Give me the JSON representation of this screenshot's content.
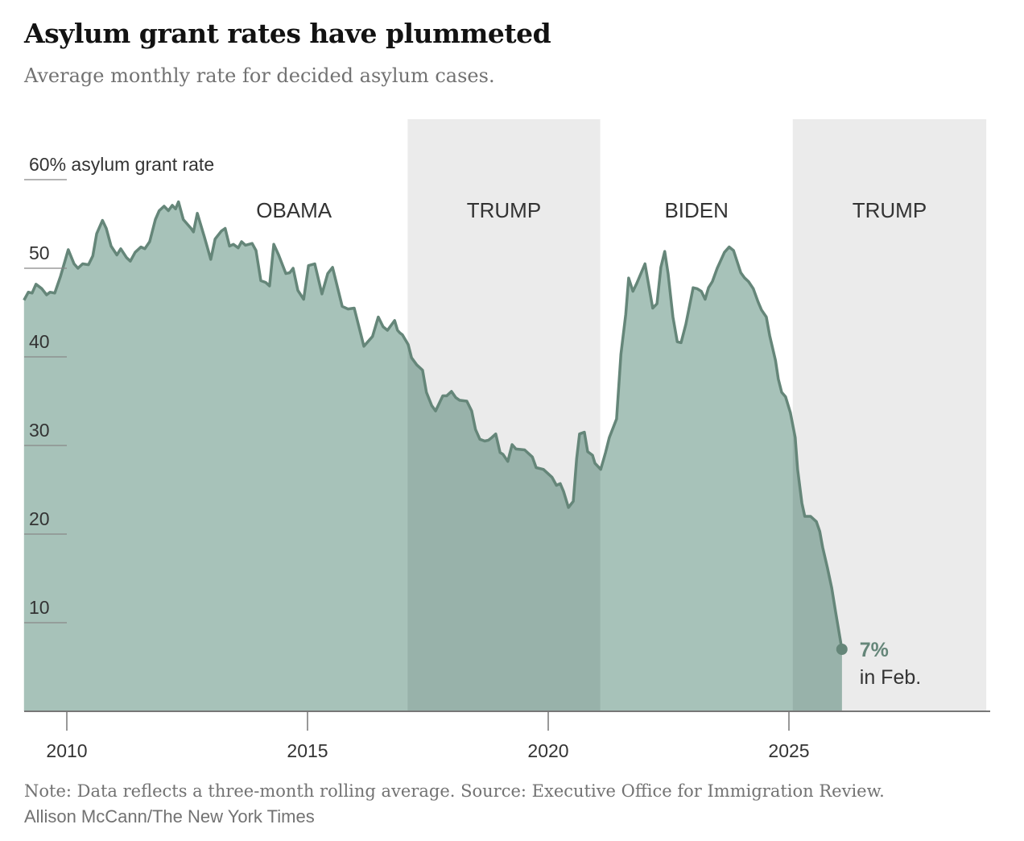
{
  "title": "Asylum grant rates have plummeted",
  "subtitle": "Average monthly rate for decided asylum cases.",
  "note": "Note: Data reflects a three-month rolling average.  Source: Executive Office for Immigration Review.",
  "credit": "Allison McCann/The New York Times",
  "colors": {
    "area": "#a7c2b9",
    "area_shaded": "#98b2aa",
    "line": "#658679",
    "term_shading": "#ebebeb"
  },
  "chart_data": {
    "type": "area",
    "title": "Asylum grant rates have plummeted",
    "subtitle": "Average monthly rate for decided asylum cases.",
    "ylabel": "60% asylum grant rate",
    "xlim": [
      2009.1,
      2029.1
    ],
    "ylim": [
      0,
      60
    ],
    "y_ticks": [
      {
        "value": 60,
        "label": "60% asylum grant rate"
      },
      {
        "value": 50,
        "label": "50"
      },
      {
        "value": 40,
        "label": "40"
      },
      {
        "value": 30,
        "label": "30"
      },
      {
        "value": 20,
        "label": "20"
      },
      {
        "value": 10,
        "label": "10"
      }
    ],
    "x_ticks": [
      {
        "value": 2010,
        "label": "2010"
      },
      {
        "value": 2015,
        "label": "2015"
      },
      {
        "value": 2020,
        "label": "2020"
      },
      {
        "value": 2025,
        "label": "2025"
      }
    ],
    "grid": false,
    "terms": [
      {
        "label": "OBAMA",
        "start": 2009.1,
        "end": 2017.08,
        "shaded": false
      },
      {
        "label": "TRUMP",
        "start": 2017.08,
        "end": 2021.08,
        "shaded": true
      },
      {
        "label": "BIDEN",
        "start": 2021.08,
        "end": 2025.08,
        "shaded": false
      },
      {
        "label": "TRUMP",
        "start": 2025.08,
        "end": 2029.1,
        "shaded": true
      }
    ],
    "annotation": {
      "value_label": "7%",
      "date_label": "in Feb.",
      "x": 2026.1,
      "y": 7
    },
    "points": [
      [
        2009.11,
        46.4
      ],
      [
        2009.2,
        47.3
      ],
      [
        2009.28,
        47.2
      ],
      [
        2009.36,
        48.2
      ],
      [
        2009.48,
        47.7
      ],
      [
        2009.58,
        47.0
      ],
      [
        2009.65,
        47.3
      ],
      [
        2009.75,
        47.2
      ],
      [
        2009.87,
        49.1
      ],
      [
        2010.03,
        52.1
      ],
      [
        2010.15,
        50.5
      ],
      [
        2010.23,
        50.0
      ],
      [
        2010.33,
        50.5
      ],
      [
        2010.45,
        50.4
      ],
      [
        2010.54,
        51.4
      ],
      [
        2010.62,
        53.9
      ],
      [
        2010.74,
        55.4
      ],
      [
        2010.82,
        54.5
      ],
      [
        2010.92,
        52.5
      ],
      [
        2011.04,
        51.5
      ],
      [
        2011.12,
        52.2
      ],
      [
        2011.24,
        51.2
      ],
      [
        2011.32,
        50.8
      ],
      [
        2011.42,
        51.8
      ],
      [
        2011.54,
        52.4
      ],
      [
        2011.62,
        52.2
      ],
      [
        2011.72,
        53.0
      ],
      [
        2011.84,
        55.5
      ],
      [
        2011.92,
        56.5
      ],
      [
        2012.02,
        57.0
      ],
      [
        2012.11,
        56.5
      ],
      [
        2012.19,
        57.1
      ],
      [
        2012.26,
        56.7
      ],
      [
        2012.32,
        57.5
      ],
      [
        2012.42,
        55.5
      ],
      [
        2012.58,
        54.5
      ],
      [
        2012.63,
        54.1
      ],
      [
        2012.71,
        56.2
      ],
      [
        2012.86,
        53.5
      ],
      [
        2012.99,
        51.0
      ],
      [
        2013.08,
        53.3
      ],
      [
        2013.21,
        54.2
      ],
      [
        2013.29,
        54.5
      ],
      [
        2013.38,
        52.5
      ],
      [
        2013.46,
        52.7
      ],
      [
        2013.56,
        52.3
      ],
      [
        2013.63,
        53.0
      ],
      [
        2013.71,
        52.6
      ],
      [
        2013.85,
        52.8
      ],
      [
        2013.93,
        52.0
      ],
      [
        2014.03,
        48.6
      ],
      [
        2014.13,
        48.4
      ],
      [
        2014.21,
        48.0
      ],
      [
        2014.3,
        52.7
      ],
      [
        2014.4,
        51.5
      ],
      [
        2014.55,
        49.4
      ],
      [
        2014.63,
        49.5
      ],
      [
        2014.7,
        50.0
      ],
      [
        2014.8,
        47.5
      ],
      [
        2014.92,
        46.5
      ],
      [
        2015.02,
        50.3
      ],
      [
        2015.15,
        50.5
      ],
      [
        2015.3,
        47.1
      ],
      [
        2015.42,
        49.4
      ],
      [
        2015.52,
        50.1
      ],
      [
        2015.72,
        45.7
      ],
      [
        2015.84,
        45.4
      ],
      [
        2015.97,
        45.5
      ],
      [
        2016.17,
        41.2
      ],
      [
        2016.35,
        42.3
      ],
      [
        2016.47,
        44.5
      ],
      [
        2016.57,
        43.4
      ],
      [
        2016.66,
        43.0
      ],
      [
        2016.81,
        44.1
      ],
      [
        2016.87,
        43.0
      ],
      [
        2016.92,
        42.7
      ],
      [
        2016.97,
        42.5
      ],
      [
        2017.09,
        41.4
      ],
      [
        2017.16,
        39.9
      ],
      [
        2017.27,
        39.1
      ],
      [
        2017.39,
        38.5
      ],
      [
        2017.47,
        36.0
      ],
      [
        2017.58,
        34.5
      ],
      [
        2017.66,
        33.9
      ],
      [
        2017.81,
        35.6
      ],
      [
        2017.89,
        35.6
      ],
      [
        2017.99,
        36.1
      ],
      [
        2018.08,
        35.4
      ],
      [
        2018.16,
        35.1
      ],
      [
        2018.31,
        35.0
      ],
      [
        2018.41,
        33.9
      ],
      [
        2018.49,
        31.8
      ],
      [
        2018.58,
        30.7
      ],
      [
        2018.68,
        30.5
      ],
      [
        2018.76,
        30.6
      ],
      [
        2018.83,
        30.9
      ],
      [
        2018.91,
        31.3
      ],
      [
        2019.0,
        29.2
      ],
      [
        2019.06,
        29.0
      ],
      [
        2019.16,
        28.2
      ],
      [
        2019.25,
        30.1
      ],
      [
        2019.33,
        29.6
      ],
      [
        2019.51,
        29.5
      ],
      [
        2019.67,
        28.7
      ],
      [
        2019.75,
        27.5
      ],
      [
        2019.9,
        27.3
      ],
      [
        2019.98,
        26.9
      ],
      [
        2020.08,
        26.4
      ],
      [
        2020.17,
        25.5
      ],
      [
        2020.25,
        25.7
      ],
      [
        2020.32,
        24.8
      ],
      [
        2020.42,
        23.0
      ],
      [
        2020.52,
        23.7
      ],
      [
        2020.59,
        28.5
      ],
      [
        2020.65,
        31.3
      ],
      [
        2020.75,
        31.5
      ],
      [
        2020.82,
        29.3
      ],
      [
        2020.92,
        28.9
      ],
      [
        2020.97,
        28.0
      ],
      [
        2021.09,
        27.3
      ],
      [
        2021.19,
        29.2
      ],
      [
        2021.27,
        30.9
      ],
      [
        2021.42,
        33.0
      ],
      [
        2021.51,
        40.3
      ],
      [
        2021.61,
        44.8
      ],
      [
        2021.67,
        48.9
      ],
      [
        2021.76,
        47.4
      ],
      [
        2021.84,
        48.3
      ],
      [
        2022.01,
        50.5
      ],
      [
        2022.17,
        45.5
      ],
      [
        2022.26,
        46.0
      ],
      [
        2022.34,
        50.1
      ],
      [
        2022.42,
        51.9
      ],
      [
        2022.49,
        49.4
      ],
      [
        2022.59,
        44.5
      ],
      [
        2022.68,
        41.7
      ],
      [
        2022.76,
        41.6
      ],
      [
        2022.86,
        43.7
      ],
      [
        2023.01,
        47.8
      ],
      [
        2023.09,
        47.7
      ],
      [
        2023.18,
        47.4
      ],
      [
        2023.26,
        46.5
      ],
      [
        2023.33,
        47.8
      ],
      [
        2023.41,
        48.5
      ],
      [
        2023.51,
        50.0
      ],
      [
        2023.66,
        51.8
      ],
      [
        2023.76,
        52.4
      ],
      [
        2023.85,
        52.0
      ],
      [
        2024.0,
        49.5
      ],
      [
        2024.08,
        48.9
      ],
      [
        2024.16,
        48.5
      ],
      [
        2024.26,
        47.7
      ],
      [
        2024.36,
        46.2
      ],
      [
        2024.43,
        45.3
      ],
      [
        2024.53,
        44.5
      ],
      [
        2024.6,
        42.4
      ],
      [
        2024.72,
        39.6
      ],
      [
        2024.78,
        37.5
      ],
      [
        2024.85,
        36.0
      ],
      [
        2024.93,
        35.5
      ],
      [
        2025.03,
        33.7
      ],
      [
        2025.13,
        30.9
      ],
      [
        2025.18,
        27.3
      ],
      [
        2025.27,
        23.5
      ],
      [
        2025.33,
        22.0
      ],
      [
        2025.45,
        22.0
      ],
      [
        2025.57,
        21.4
      ],
      [
        2025.64,
        20.3
      ],
      [
        2025.7,
        18.5
      ],
      [
        2025.8,
        16.2
      ],
      [
        2025.89,
        13.9
      ],
      [
        2025.97,
        11.2
      ],
      [
        2026.1,
        7.0
      ]
    ]
  }
}
